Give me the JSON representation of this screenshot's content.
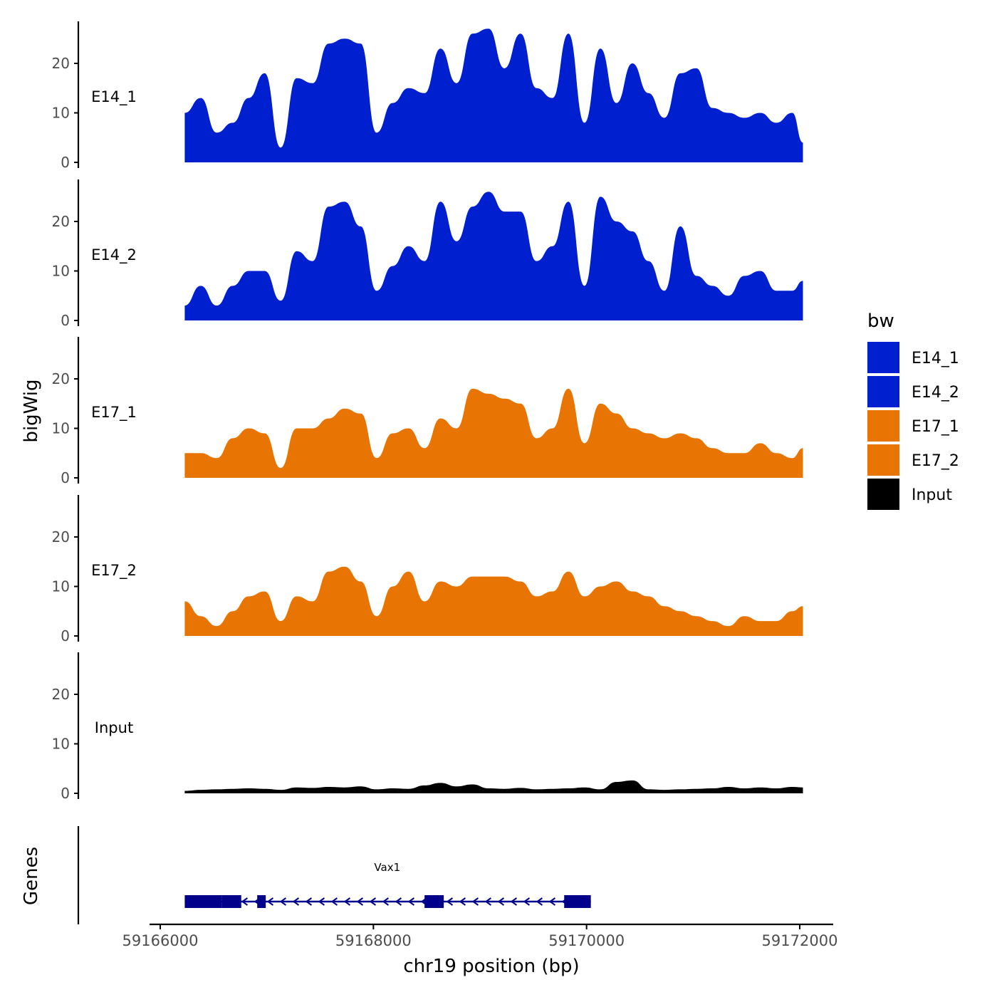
{
  "chart_data": {
    "type": "area",
    "title": "",
    "xlabel": "chr19 position (bp)",
    "ylabel": "bigWig",
    "gene_panel_label": "Genes",
    "xlim": [
      59166000,
      59172200
    ],
    "x_ticks": [
      59166000,
      59168000,
      59170000,
      59172000
    ],
    "x_tick_labels": [
      "59166000",
      "59168000",
      "59170000",
      "59172000"
    ],
    "ylim": [
      0,
      28
    ],
    "y_ticks": [
      0,
      10,
      20
    ],
    "y_tick_labels": [
      "0",
      "10",
      "20"
    ],
    "legend": {
      "title": "bw",
      "placement": "right",
      "entries": [
        {
          "label": "E14_1",
          "color": "#0020D0"
        },
        {
          "label": "E14_2",
          "color": "#0020D0"
        },
        {
          "label": "E17_1",
          "color": "#E87503"
        },
        {
          "label": "E17_2",
          "color": "#E87503"
        },
        {
          "label": "Input",
          "color": "#000000"
        }
      ]
    },
    "x": [
      59166230,
      59166380,
      59166530,
      59166680,
      59166830,
      59166980,
      59167130,
      59167280,
      59167430,
      59167580,
      59167730,
      59167880,
      59168030,
      59168180,
      59168330,
      59168480,
      59168630,
      59168780,
      59168930,
      59169080,
      59169230,
      59169380,
      59169530,
      59169680,
      59169830,
      59169980,
      59170130,
      59170280,
      59170430,
      59170580,
      59170730,
      59170880,
      59171030,
      59171180,
      59171330,
      59171480,
      59171630,
      59171780,
      59171930,
      59172030
    ],
    "series": [
      {
        "name": "E14_1",
        "color": "#0020D0",
        "values": [
          10,
          13,
          6,
          8,
          13,
          18,
          3,
          17,
          16,
          24,
          25,
          24,
          6,
          12,
          15,
          14,
          23,
          16,
          26,
          27,
          19,
          26,
          15,
          13,
          26,
          8,
          23,
          12,
          20,
          14,
          9,
          18,
          19,
          11,
          10,
          9,
          10,
          8,
          10,
          4
        ]
      },
      {
        "name": "E14_2",
        "color": "#0020D0",
        "values": [
          3,
          7,
          3,
          7,
          10,
          10,
          4,
          14,
          12,
          23,
          24,
          19,
          6,
          11,
          15,
          12,
          24,
          16,
          23,
          26,
          22,
          22,
          12,
          15,
          24,
          7,
          25,
          20,
          18,
          12,
          6,
          19,
          9,
          7,
          5,
          9,
          10,
          6,
          6,
          8
        ]
      },
      {
        "name": "E17_1",
        "color": "#E87503",
        "values": [
          5,
          5,
          4,
          8,
          10,
          9,
          2,
          10,
          10,
          12,
          14,
          13,
          4,
          9,
          10,
          6,
          12,
          10,
          18,
          17,
          16,
          15,
          8,
          10,
          18,
          7,
          15,
          13,
          10,
          9,
          8,
          9,
          8,
          6,
          5,
          5,
          7,
          5,
          4,
          6
        ]
      },
      {
        "name": "E17_2",
        "color": "#E87503",
        "values": [
          7,
          4,
          2,
          5,
          8,
          9,
          3,
          8,
          7,
          13,
          14,
          11,
          4,
          10,
          13,
          7,
          11,
          10,
          12,
          12,
          12,
          11,
          8,
          9,
          13,
          8,
          10,
          11,
          9,
          8,
          6,
          5,
          4,
          3,
          2,
          4,
          3,
          3,
          5,
          6
        ]
      },
      {
        "name": "Input",
        "color": "#000000",
        "values": [
          0.5,
          0.7,
          0.8,
          0.9,
          1.0,
          0.9,
          0.7,
          1.2,
          1.1,
          1.3,
          1.2,
          1.4,
          0.8,
          1.0,
          0.9,
          1.6,
          2.1,
          1.4,
          1.8,
          1.0,
          0.9,
          1.1,
          0.8,
          0.9,
          1.0,
          1.2,
          0.8,
          2.3,
          2.6,
          0.8,
          0.7,
          0.8,
          0.9,
          1.0,
          1.3,
          1.0,
          1.2,
          1.0,
          1.3,
          1.2
        ]
      }
    ],
    "annotations": [
      {
        "type": "gene",
        "name": "Vax1",
        "strand": "-",
        "start": 59166230,
        "end": 59170040,
        "exons": [
          [
            59166230,
            59166580
          ],
          [
            59166580,
            59166760
          ],
          [
            59166910,
            59166990
          ],
          [
            59168480,
            59168660
          ],
          [
            59169790,
            59170040
          ]
        ]
      }
    ]
  },
  "colors": {
    "gene": "#00008B",
    "axis": "#000000",
    "tick_label": "#4D4D4D"
  }
}
